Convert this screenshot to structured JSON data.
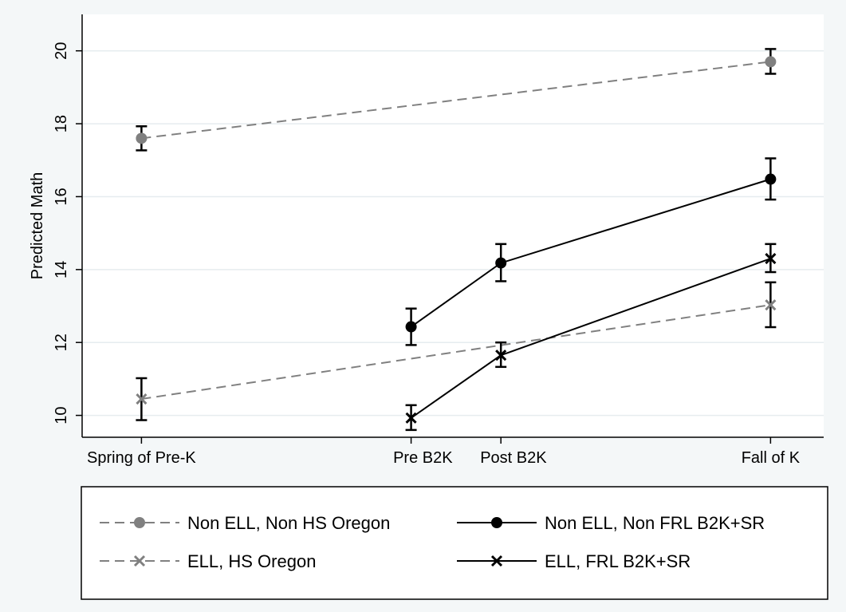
{
  "chart_data": {
    "type": "line",
    "title": "",
    "xlabel": "",
    "ylabel": "Predicted Math",
    "ylim": [
      9.4,
      21.0
    ],
    "yticks": [
      10,
      12,
      14,
      16,
      18,
      20
    ],
    "x_ticks": [
      {
        "label": "Spring of Pre-K",
        "pos": 0
      },
      {
        "label": "Pre B2K",
        "pos": 1
      },
      {
        "label": "Post B2K",
        "pos": 1.333
      },
      {
        "label": "Fall of K",
        "pos": 2.333
      }
    ],
    "xlim": [
      -0.22,
      2.53
    ],
    "grid": true,
    "legend_position": "bottom",
    "series": [
      {
        "name": "Non ELL, Non HS Oregon",
        "style": "dashed",
        "marker": "circle",
        "color": "#808080",
        "points": [
          {
            "x": 0,
            "y": 17.6,
            "lo": 17.27,
            "hi": 17.93
          },
          {
            "x": 2.333,
            "y": 19.7,
            "lo": 19.37,
            "hi": 20.05
          }
        ]
      },
      {
        "name": "Non ELL, Non FRL B2K+SR",
        "style": "solid",
        "marker": "circle",
        "color": "#000000",
        "points": [
          {
            "x": 1,
            "y": 12.43,
            "lo": 11.93,
            "hi": 12.93
          },
          {
            "x": 1.333,
            "y": 14.18,
            "lo": 13.68,
            "hi": 14.7
          },
          {
            "x": 2.333,
            "y": 16.48,
            "lo": 15.92,
            "hi": 17.05
          }
        ]
      },
      {
        "name": "ELL, HS Oregon",
        "style": "dashed",
        "marker": "x",
        "color": "#808080",
        "points": [
          {
            "x": 0,
            "y": 10.45,
            "lo": 9.87,
            "hi": 11.02
          },
          {
            "x": 2.333,
            "y": 13.03,
            "lo": 12.42,
            "hi": 13.65
          }
        ]
      },
      {
        "name": "ELL, FRL B2K+SR",
        "style": "solid",
        "marker": "x",
        "color": "#000000",
        "points": [
          {
            "x": 1,
            "y": 9.93,
            "lo": 9.6,
            "hi": 10.28
          },
          {
            "x": 1.333,
            "y": 11.65,
            "lo": 11.33,
            "hi": 12.0
          },
          {
            "x": 2.333,
            "y": 14.3,
            "lo": 13.93,
            "hi": 14.7
          }
        ]
      }
    ]
  },
  "colors": {
    "background": "#f4f7f8",
    "plot_background": "#ffffff",
    "grid": "#e6ecef"
  }
}
